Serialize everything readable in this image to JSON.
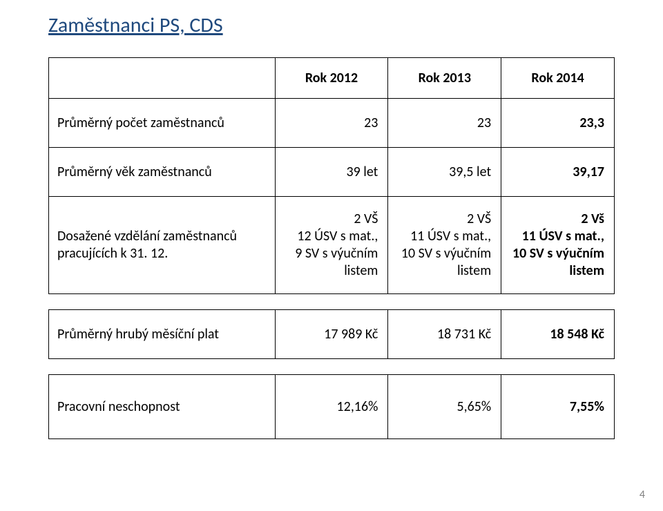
{
  "title": "Zaměstnanci  PS, CDS",
  "yearHeaders": {
    "y2012": "Rok 2012",
    "y2013": "Rok 2013",
    "y2014": "Rok 2014"
  },
  "rows": {
    "avgCount": {
      "label": "Průměrný počet zaměstnanců",
      "y2012": "23",
      "y2013": "23",
      "y2014": "23,3"
    },
    "avgAge": {
      "label": "Průměrný věk zaměstnanců",
      "y2012": "39 let",
      "y2013": "39,5 let",
      "y2014": "39,17"
    },
    "education": {
      "label_l1": "Dosažené vzdělání  zaměstnanců",
      "label_l2": "pracujících k 31. 12.",
      "y2012_l1": "2 VŠ",
      "y2012_l2": "12 ÚSV s mat.,",
      "y2012_l3": "9 SV s výučním",
      "y2012_l4": "listem",
      "y2013_l1": "2 VŠ",
      "y2013_l2": "11 ÚSV s mat.,",
      "y2013_l3": "10 SV s výučním",
      "y2013_l4": "listem",
      "y2014_l1": "2 Vš",
      "y2014_l2": "11 ÚSV s mat.,",
      "y2014_l3": "10 SV s výučním",
      "y2014_l4": "listem"
    },
    "salary": {
      "label": "Průměrný hrubý měsíční plat",
      "y2012": "17 989 Kč",
      "y2013": "18 731 Kč",
      "y2014": "18 548 Kč"
    },
    "absence": {
      "label": "Pracovní neschopnost",
      "y2012": "12,16%",
      "y2013": "5,65%",
      "y2014": "7,55%"
    }
  },
  "pageNumber": "4",
  "style": {
    "titleColor": "#1f497d",
    "titleFontSize": 30,
    "cellFontSize": 20,
    "borderColor": "#000000",
    "pageNumColor": "#808080",
    "background": "#ffffff"
  }
}
